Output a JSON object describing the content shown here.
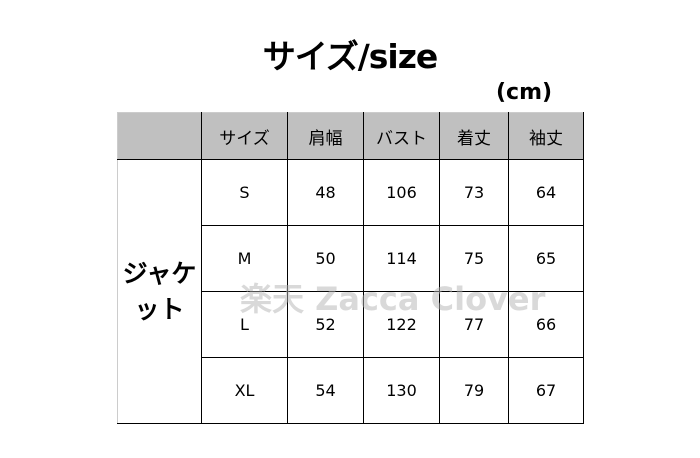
{
  "title": "サイズ/size",
  "unit": "(cm)",
  "table": {
    "headers": [
      "",
      "サイズ",
      "肩幅",
      "バスト",
      "着丈",
      "袖丈"
    ],
    "category_line1": "ジャケ",
    "category_line2": "ット",
    "rows": [
      [
        "S",
        "48",
        "106",
        "73",
        "64"
      ],
      [
        "M",
        "50",
        "114",
        "75",
        "65"
      ],
      [
        "L",
        "52",
        "122",
        "77",
        "66"
      ],
      [
        "XL",
        "54",
        "130",
        "79",
        "67"
      ]
    ]
  },
  "watermark": "楽天 Zacca Clover"
}
